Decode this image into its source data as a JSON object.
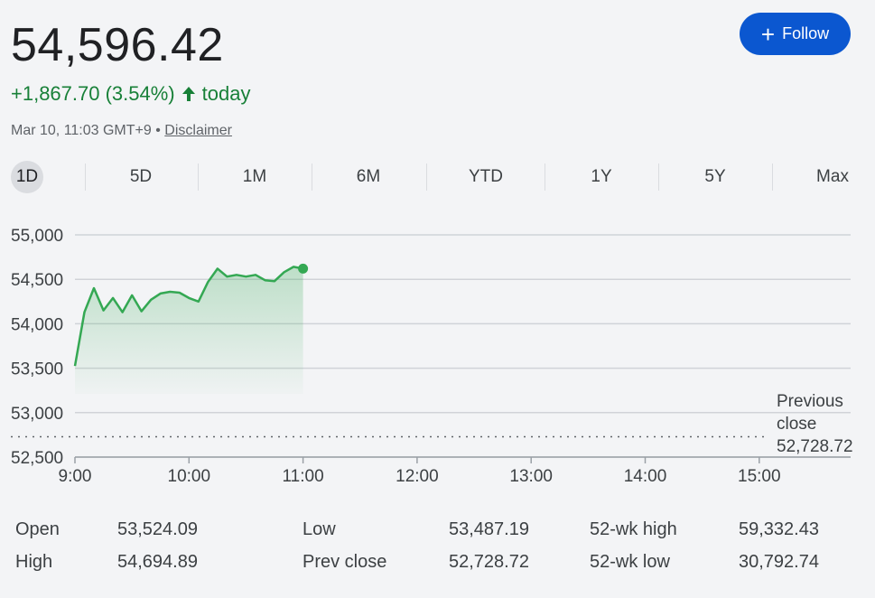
{
  "quote": {
    "price": "54,596.42",
    "change": "+1,867.70 (3.54%)",
    "direction": "up",
    "period": "today",
    "timestamp": "Mar 10, 11:03 GMT+9",
    "separator": "•",
    "disclaimer_label": "Disclaimer"
  },
  "follow_button": {
    "label": "Follow",
    "icon": "plus-icon"
  },
  "ranges": [
    "1D",
    "5D",
    "1M",
    "6M",
    "YTD",
    "1Y",
    "5Y",
    "Max"
  ],
  "active_range": "1D",
  "colors": {
    "positive": "#188038",
    "line": "#34a853",
    "button": "#0b57d0",
    "text": "#202124"
  },
  "chart_data": {
    "type": "area",
    "y_ticks": [
      "55,000",
      "54,500",
      "54,000",
      "53,500",
      "53,000",
      "52,500"
    ],
    "x_ticks": [
      "9:00",
      "10:00",
      "11:00",
      "12:00",
      "13:00",
      "14:00",
      "15:00"
    ],
    "ylim": [
      52500,
      55000
    ],
    "xlim": [
      "9:00",
      "15:30"
    ],
    "grid": true,
    "reference_line": {
      "label_line1": "Previous",
      "label_line2": "close",
      "value_label": "52,728.72",
      "value": 52728.72
    },
    "series": [
      {
        "x": [
          "9:00",
          "9:05",
          "9:10",
          "9:15",
          "9:20",
          "9:25",
          "9:30",
          "9:35",
          "9:40",
          "9:45",
          "9:50",
          "9:55",
          "10:00",
          "10:05",
          "10:10",
          "10:15",
          "10:20",
          "10:25",
          "10:30",
          "10:35",
          "10:40",
          "10:45",
          "10:50",
          "10:55",
          "11:00"
        ],
        "values": [
          53524,
          54130,
          54400,
          54150,
          54290,
          54130,
          54320,
          54140,
          54270,
          54340,
          54360,
          54350,
          54290,
          54250,
          54470,
          54620,
          54530,
          54550,
          54530,
          54550,
          54490,
          54480,
          54580,
          54640,
          54620
        ]
      }
    ]
  },
  "stats": [
    {
      "label": "Open",
      "value": "53,524.09"
    },
    {
      "label": "High",
      "value": "54,694.89"
    },
    {
      "label": "Low",
      "value": "53,487.19"
    },
    {
      "label": "Prev close",
      "value": "52,728.72"
    },
    {
      "label": "52-wk high",
      "value": "59,332.43"
    },
    {
      "label": "52-wk low",
      "value": "30,792.74"
    }
  ]
}
